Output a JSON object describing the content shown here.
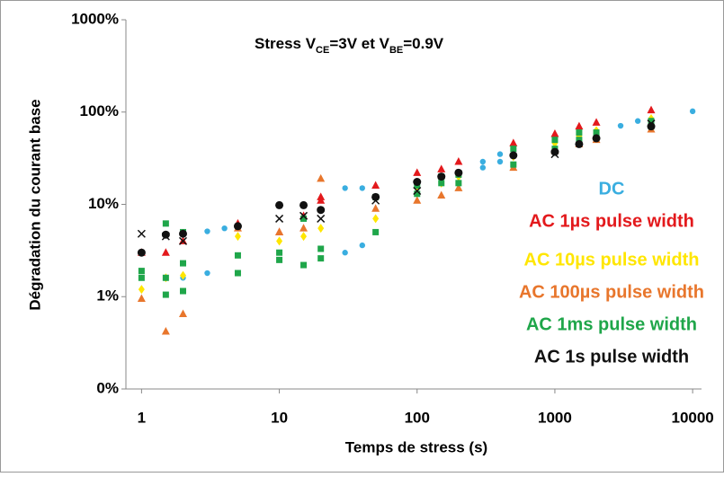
{
  "chart_data": {
    "type": "scatter",
    "title_parts": [
      "Stress V",
      "CE",
      "=3V et V",
      "BE",
      "=0.9V"
    ],
    "x_label": "Temps de stress (s)",
    "y_label": "Dégradation du courant base",
    "xscale": "log",
    "yscale": "log",
    "xlim": [
      0.77,
      11600
    ],
    "xticks": [
      1,
      10,
      100,
      1000,
      10000
    ],
    "ylim": [
      0.1,
      1000
    ],
    "yticks": [
      {
        "value": 0.1,
        "label": "0%"
      },
      {
        "value": 1,
        "label": "1%"
      },
      {
        "value": 10,
        "label": "10%"
      },
      {
        "value": 100,
        "label": "100%"
      },
      {
        "value": 1000,
        "label": "1000%"
      }
    ],
    "grid": false,
    "legend": "right",
    "series": [
      {
        "name": "DC",
        "color": "#3aaee0",
        "marker": "small-circle",
        "x": [
          2,
          3,
          3,
          4,
          30,
          30,
          40,
          40,
          300,
          300,
          400,
          400,
          3000,
          4000,
          10000
        ],
        "values": [
          1.6,
          5.1,
          1.8,
          5.5,
          15,
          3,
          15,
          3.6,
          29,
          25,
          35,
          29,
          71,
          80,
          102
        ]
      },
      {
        "name": "AC 1µs pulse width",
        "color": "#e3191c",
        "marker": "triangle",
        "x": [
          1,
          1.5,
          2,
          5,
          10,
          15,
          20,
          20,
          50,
          100,
          150,
          200,
          500,
          1000,
          1500,
          2000,
          5000
        ],
        "values": [
          3,
          3,
          4,
          6.2,
          5,
          7.5,
          11,
          12,
          16,
          22,
          24,
          29,
          46,
          58,
          70,
          77,
          105
        ]
      },
      {
        "name": "AC 10µs pulse width",
        "color": "#ffe600",
        "marker": "diamond",
        "x": [
          1,
          1.5,
          2,
          5,
          10,
          15,
          20,
          50,
          100,
          150,
          200,
          500,
          1000,
          1500,
          2000,
          5000
        ],
        "values": [
          1.2,
          1.6,
          1.7,
          4.5,
          4,
          4.5,
          5.5,
          7,
          15,
          17,
          20,
          33,
          46,
          55,
          63,
          85
        ]
      },
      {
        "name": "AC 100µs pulse width",
        "color": "#e8762c",
        "marker": "triangle",
        "x": [
          1,
          1.5,
          2,
          5,
          10,
          15,
          20,
          50,
          100,
          150,
          200,
          500,
          1000,
          1500,
          2000,
          5000
        ],
        "values": [
          0.95,
          0.42,
          0.65,
          5.5,
          5,
          5.5,
          19,
          9,
          11,
          12.5,
          15,
          25,
          38,
          45,
          50,
          65
        ]
      },
      {
        "name": "AC 1ms pulse width",
        "color": "#1fa64a",
        "marker": "square",
        "x": [
          1,
          1,
          1.5,
          1.5,
          1.5,
          2,
          2,
          2,
          5,
          5,
          10,
          10,
          15,
          15,
          20,
          20,
          50,
          50,
          100,
          100,
          150,
          150,
          200,
          200,
          500,
          500,
          1000,
          1000,
          1500,
          1500,
          2000,
          5000,
          5000
        ],
        "values": [
          1.9,
          1.6,
          6.2,
          1.05,
          1.6,
          5,
          2.3,
          1.15,
          2.8,
          1.8,
          2.5,
          3,
          2.2,
          7,
          2.6,
          3.3,
          5,
          12,
          13,
          16,
          17,
          20,
          17,
          21,
          27,
          40,
          40,
          50,
          50,
          60,
          60,
          70,
          80
        ]
      },
      {
        "name": "AC 1s pulse width",
        "color": "#111111",
        "marker": "circle",
        "x": [
          1,
          1.5,
          2,
          5,
          10,
          15,
          20,
          50,
          100,
          150,
          200,
          500,
          1000,
          1500,
          2000,
          5000,
          1,
          1.5,
          2,
          10,
          15,
          20,
          50,
          100,
          1000,
          5000
        ],
        "values": [
          3,
          4.7,
          4.8,
          5.8,
          9.8,
          9.8,
          8.7,
          12,
          17.5,
          20,
          22,
          34,
          37,
          45,
          52,
          70,
          4.8,
          4.5,
          4,
          7,
          7.5,
          7,
          11,
          14,
          35,
          75
        ],
        "markers": [
          "circle",
          "circle",
          "circle",
          "circle",
          "circle",
          "circle",
          "circle",
          "circle",
          "circle",
          "circle",
          "circle",
          "circle",
          "circle",
          "circle",
          "circle",
          "circle",
          "cross",
          "cross",
          "cross",
          "cross",
          "cross",
          "cross",
          "cross",
          "cross",
          "cross",
          "cross"
        ]
      }
    ]
  }
}
